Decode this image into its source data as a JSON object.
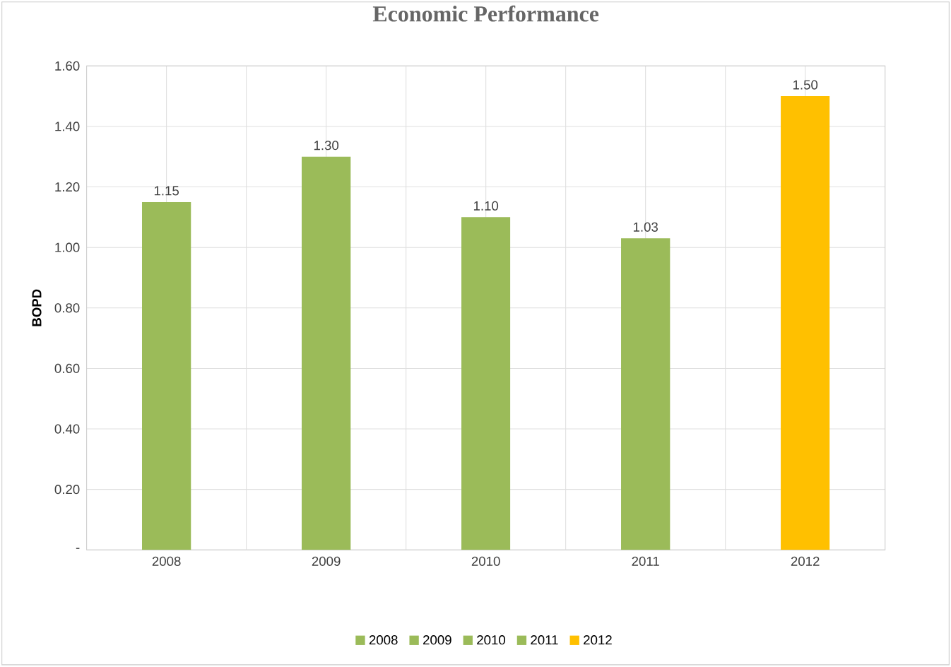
{
  "chart_data": {
    "type": "bar",
    "title": "Economic Performance",
    "ylabel": "BOPD",
    "categories": [
      "2008",
      "2009",
      "2010",
      "2011",
      "2012"
    ],
    "series": [
      {
        "name": "2008",
        "color": "#9bbb59",
        "values": [
          1.15,
          null,
          null,
          null,
          null
        ],
        "value_labels": [
          "1.15",
          null,
          null,
          null,
          null
        ]
      },
      {
        "name": "2009",
        "color": "#9bbb59",
        "values": [
          null,
          1.3,
          null,
          null,
          null
        ],
        "value_labels": [
          null,
          "1.30",
          null,
          null,
          null
        ]
      },
      {
        "name": "2010",
        "color": "#9bbb59",
        "values": [
          null,
          null,
          1.1,
          null,
          null
        ],
        "value_labels": [
          null,
          null,
          "1.10",
          null,
          null
        ]
      },
      {
        "name": "2011",
        "color": "#9bbb59",
        "values": [
          null,
          null,
          null,
          1.03,
          null
        ],
        "value_labels": [
          null,
          null,
          null,
          "1.03",
          null
        ]
      },
      {
        "name": "2012",
        "color": "#ffc000",
        "values": [
          null,
          null,
          null,
          null,
          1.5
        ],
        "value_labels": [
          null,
          null,
          null,
          null,
          "1.50"
        ]
      }
    ],
    "ylim": [
      0,
      1.6
    ],
    "yticks": [
      {
        "value": 0,
        "label": "-"
      },
      {
        "value": 0.2,
        "label": "0.20"
      },
      {
        "value": 0.4,
        "label": "0.40"
      },
      {
        "value": 0.6,
        "label": "0.60"
      },
      {
        "value": 0.8,
        "label": "0.80"
      },
      {
        "value": 1.0,
        "label": "1.00"
      },
      {
        "value": 1.2,
        "label": "1.20"
      },
      {
        "value": 1.4,
        "label": "1.40"
      },
      {
        "value": 1.6,
        "label": "1.60"
      }
    ],
    "grid": true,
    "legend": "bottom"
  }
}
